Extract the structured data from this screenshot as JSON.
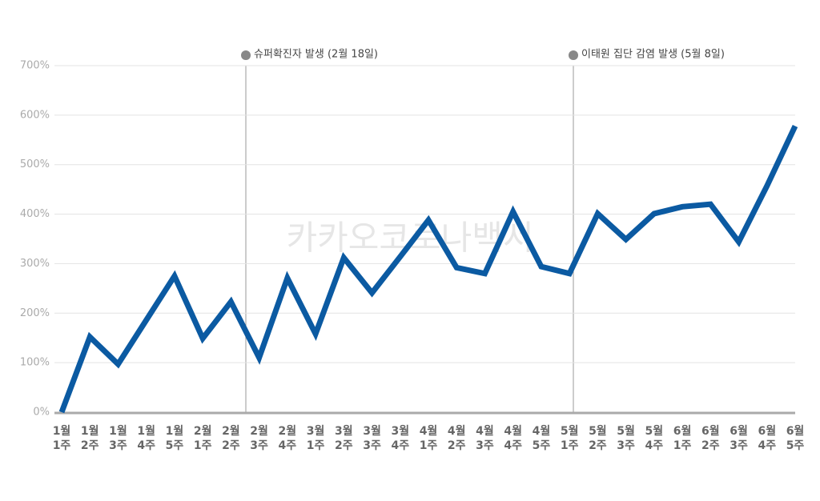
{
  "chart_data": {
    "type": "line",
    "watermark": "카카오코로나백서",
    "annotations": [
      "슈퍼확진자 발생 (2월 18일)",
      "이태원 집단 감염 발생 (5월 8일)"
    ],
    "categories": [
      "1월\n1주",
      "1월\n2주",
      "1월\n3주",
      "1월\n4주",
      "1월\n5주",
      "2월\n1주",
      "2월\n2주",
      "2월\n3주",
      "2월\n4주",
      "3월\n1주",
      "3월\n2주",
      "3월\n3주",
      "3월\n4주",
      "4월\n1주",
      "4월\n2주",
      "4월\n3주",
      "4월\n4주",
      "4월\n5주",
      "5월\n1주",
      "5월\n2주",
      "5월\n3주",
      "5월\n4주",
      "6월\n1주",
      "6월\n2주",
      "6월\n3주",
      "6월\n4주",
      "6월\n5주"
    ],
    "series": [
      {
        "color": "#0b5aa2",
        "values": [
          0,
          152,
          97,
          186,
          275,
          149,
          223,
          110,
          271,
          158,
          312,
          241,
          314,
          388,
          292,
          280,
          405,
          294,
          280,
          401,
          349,
          401,
          415,
          420,
          344,
          457,
          578
        ]
      }
    ],
    "ylim": [
      0,
      700
    ],
    "yticks": [
      {
        "value": 0,
        "label": "0%"
      },
      {
        "value": 100,
        "label": "100%"
      },
      {
        "value": 200,
        "label": "200%"
      },
      {
        "value": 300,
        "label": "300%"
      },
      {
        "value": 400,
        "label": "400%"
      },
      {
        "value": 500,
        "label": "500%"
      },
      {
        "value": 600,
        "label": "600%"
      },
      {
        "value": 700,
        "label": "700%"
      }
    ],
    "grid": true
  }
}
